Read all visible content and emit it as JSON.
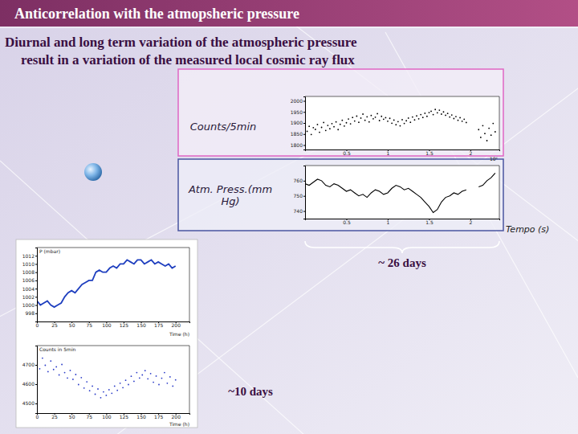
{
  "header": {
    "title": "Anticorrelation with the atmopsheric pressure",
    "subtitle": [
      "Diurnal and long term variation of the atmospheric pressure",
      "result in a variation of the measured local cosmic ray flux"
    ],
    "annotations": [
      "~ 26 days",
      "~10 days"
    ]
  },
  "chart_data": [
    {
      "type": "scatter",
      "title": "Counts/5min",
      "color": "#000000",
      "marker": "dot",
      "grid": false,
      "annotations": [
        "10⁶"
      ],
      "xlim": [
        0,
        2.35
      ],
      "xticks": [
        0.5,
        1,
        1.5,
        2
      ],
      "ylim": [
        1780,
        2020
      ],
      "yticks": [
        1800,
        1850,
        1900,
        1950,
        2000
      ],
      "x": [
        0.025,
        0.05,
        0.075,
        0.1,
        0.125,
        0.15,
        0.175,
        0.2,
        0.225,
        0.25,
        0.275,
        0.3,
        0.325,
        0.35,
        0.375,
        0.4,
        0.425,
        0.45,
        0.475,
        0.5,
        0.525,
        0.55,
        0.575,
        0.6,
        0.625,
        0.65,
        0.675,
        0.7,
        0.725,
        0.75,
        0.775,
        0.8,
        0.825,
        0.85,
        0.875,
        0.9,
        0.925,
        0.95,
        0.975,
        1.0,
        1.025,
        1.05,
        1.075,
        1.1,
        1.125,
        1.15,
        1.175,
        1.2,
        1.225,
        1.25,
        1.275,
        1.3,
        1.325,
        1.35,
        1.375,
        1.4,
        1.425,
        1.45,
        1.475,
        1.5,
        1.525,
        1.55,
        1.575,
        1.6,
        1.625,
        1.65,
        1.675,
        1.7,
        1.725,
        1.75,
        1.775,
        1.8,
        1.825,
        1.85,
        1.875,
        1.9,
        1.925,
        1.95,
        2.1,
        2.125,
        2.15,
        2.175,
        2.2,
        2.225,
        2.25,
        2.275,
        2.3
      ],
      "values": [
        1862,
        1885,
        1848,
        1879,
        1871,
        1893,
        1858,
        1880,
        1902,
        1866,
        1889,
        1874,
        1897,
        1883,
        1905,
        1870,
        1894,
        1912,
        1886,
        1901,
        1918,
        1896,
        1925,
        1909,
        1931,
        1903,
        1922,
        1940,
        1912,
        1928,
        1905,
        1934,
        1919,
        1926,
        1942,
        1911,
        1930,
        1917,
        1924,
        1908,
        1921,
        1899,
        1913,
        1892,
        1906,
        1887,
        1915,
        1898,
        1910,
        1922,
        1903,
        1927,
        1914,
        1932,
        1919,
        1938,
        1925,
        1944,
        1930,
        1947,
        1953,
        1938,
        1961,
        1946,
        1958,
        1940,
        1950,
        1935,
        1943,
        1927,
        1936,
        1920,
        1929,
        1912,
        1924,
        1908,
        1917,
        1902,
        1870,
        1835,
        1888,
        1852,
        1820,
        1876,
        1845,
        1898,
        1860
      ]
    },
    {
      "type": "line",
      "title": "Atm. Press.(mm Hg)",
      "xlabel": "Tempo (s)",
      "color": "#000000",
      "line_style": "solid",
      "grid": false,
      "xlim": [
        0,
        2.35
      ],
      "xticks": [
        0.5,
        1,
        1.5,
        2
      ],
      "ylim": [
        735,
        770
      ],
      "yticks": [
        740,
        750,
        760
      ],
      "x": [
        0,
        0.05,
        0.1,
        0.15,
        0.2,
        0.25,
        0.3,
        0.35,
        0.4,
        0.45,
        0.5,
        0.55,
        0.6,
        0.65,
        0.7,
        0.75,
        0.8,
        0.85,
        0.9,
        0.95,
        1.0,
        1.05,
        1.1,
        1.15,
        1.2,
        1.25,
        1.3,
        1.35,
        1.4,
        1.45,
        1.5,
        1.55,
        1.6,
        1.65,
        1.7,
        1.75,
        1.8,
        1.85,
        1.9,
        1.95,
        2.0,
        2.1,
        2.15,
        2.2,
        2.25,
        2.3
      ],
      "values": [
        758,
        757,
        759,
        761,
        760,
        757,
        756,
        758,
        757,
        755,
        753,
        754,
        752,
        750,
        751,
        749,
        752,
        754,
        753,
        751,
        752,
        755,
        757,
        756,
        754,
        755,
        753,
        751,
        749,
        746,
        743,
        739,
        741,
        746,
        749,
        750,
        752,
        751,
        753,
        754,
        null,
        756,
        757,
        760,
        762,
        765
      ]
    },
    {
      "type": "line",
      "title": "P (mbar)",
      "xlabel": "Time (h)",
      "color": "#1f3fbf",
      "line_style": "solid",
      "grid": false,
      "xlim": [
        0,
        220
      ],
      "xticks": [
        0,
        25,
        50,
        75,
        100,
        125,
        150,
        175,
        200
      ],
      "ylim": [
        996,
        1014
      ],
      "yticks": [
        998,
        1000,
        1002,
        1004,
        1006,
        1008,
        1010,
        1012
      ],
      "x": [
        0,
        5,
        10,
        15,
        20,
        25,
        30,
        35,
        40,
        45,
        50,
        55,
        60,
        65,
        70,
        75,
        80,
        85,
        90,
        95,
        100,
        105,
        110,
        115,
        120,
        125,
        130,
        135,
        140,
        145,
        150,
        155,
        160,
        165,
        170,
        175,
        180,
        185,
        190,
        195,
        200
      ],
      "values": [
        1001,
        1000,
        1000.5,
        1001,
        1000,
        999.5,
        1000,
        1000.5,
        1002,
        1003,
        1003.5,
        1003,
        1004,
        1005,
        1005.5,
        1006,
        1006,
        1008,
        1008.5,
        1008,
        1008,
        1009,
        1009.5,
        1009,
        1010,
        1010,
        1011,
        1010.5,
        1010,
        1011,
        1011,
        1010,
        1010.5,
        1011,
        1010,
        1010.5,
        1010,
        1009.5,
        1010,
        1009,
        1009.5
      ]
    },
    {
      "type": "scatter",
      "title": "Counts in 5min",
      "xlabel": "Time (h)",
      "color": "#2b3cc8",
      "marker": "dot",
      "grid": false,
      "xlim": [
        0,
        220
      ],
      "xticks": [
        0,
        25,
        50,
        75,
        100,
        125,
        150,
        175,
        200
      ],
      "ylim": [
        4450,
        4800
      ],
      "yticks": [
        4500,
        4600,
        4700
      ],
      "x": [
        0,
        4,
        8,
        12,
        16,
        20,
        24,
        28,
        32,
        36,
        40,
        44,
        48,
        52,
        56,
        60,
        64,
        68,
        72,
        76,
        80,
        84,
        88,
        92,
        96,
        100,
        104,
        108,
        112,
        116,
        120,
        124,
        128,
        132,
        136,
        140,
        144,
        148,
        152,
        156,
        160,
        164,
        168,
        172,
        176,
        180,
        184,
        188,
        192,
        196,
        200
      ],
      "values": [
        4712,
        4680,
        4735,
        4698,
        4665,
        4720,
        4676,
        4690,
        4648,
        4702,
        4660,
        4632,
        4671,
        4625,
        4650,
        4598,
        4634,
        4580,
        4612,
        4566,
        4590,
        4548,
        4575,
        4530,
        4560,
        4542,
        4571,
        4553,
        4590,
        4568,
        4605,
        4582,
        4620,
        4598,
        4641,
        4615,
        4660,
        4632,
        4648,
        4670,
        4628,
        4655,
        4610,
        4642,
        4598,
        4631,
        4660,
        4605,
        4638,
        4590,
        4622
      ]
    }
  ]
}
